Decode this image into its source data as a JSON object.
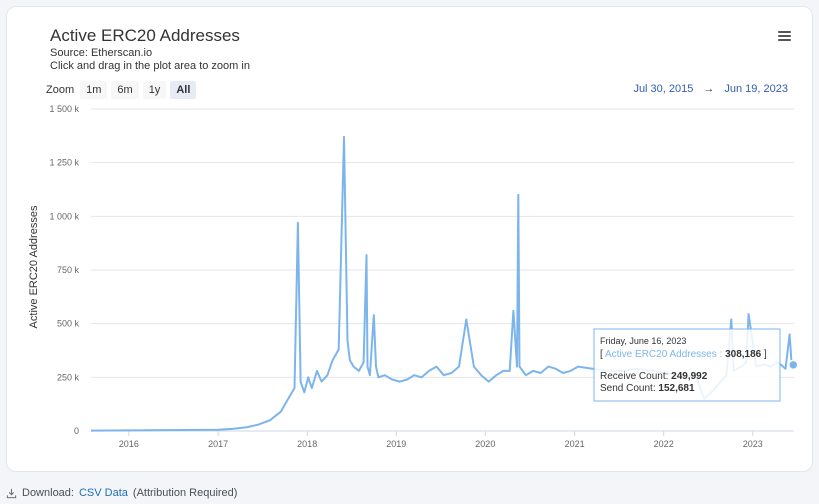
{
  "header": {
    "title": "Active ERC20 Addresses",
    "source": "Source: Etherscan.io",
    "hint": "Click and drag in the plot area to zoom in",
    "menu_icon": "hamburger-menu-icon"
  },
  "zoom": {
    "label": "Zoom",
    "buttons": [
      "1m",
      "6m",
      "1y",
      "All"
    ],
    "active": "All"
  },
  "range": {
    "from": "Jul 30, 2015",
    "arrow": "→",
    "to": "Jun 19, 2023"
  },
  "tooltip": {
    "date": "Friday, June 16, 2023",
    "series_open": "[ ",
    "series_name": "Active ERC20 Addresses",
    "series_sep": " : ",
    "series_value": "308,186",
    "series_close": " ]",
    "receive_label": "Receive Count:",
    "receive_value": "249,992",
    "send_label": "Send Count:",
    "send_value": "152,681"
  },
  "footer": {
    "prefix": "Download:",
    "link": "CSV Data",
    "suffix": "(Attribution Required)",
    "icon": "download-icon"
  },
  "chart_data": {
    "type": "line",
    "title": "Active ERC20 Addresses",
    "ylabel": "Active ERC20 Addresses",
    "xlabel": "",
    "xlim": [
      "2015-07-30",
      "2023-06-19"
    ],
    "ylim": [
      0,
      1500000
    ],
    "ytick_values": [
      0,
      250000,
      500000,
      750000,
      1000000,
      1250000,
      1500000
    ],
    "ytick_labels": [
      "0",
      "250 k",
      "500 k",
      "750 k",
      "1 000 k",
      "1 250 k",
      "1 500 k"
    ],
    "xtick_labels": [
      "2016",
      "2017",
      "2018",
      "2019",
      "2020",
      "2021",
      "2022",
      "2023"
    ],
    "xtick_dates": [
      "2016-01-01",
      "2017-01-01",
      "2018-01-01",
      "2019-01-01",
      "2020-01-01",
      "2021-01-01",
      "2022-01-01",
      "2023-01-01"
    ],
    "grid": true,
    "line_color": "#7cb5ec",
    "series": [
      {
        "name": "Active ERC20 Addresses",
        "x": [
          "2015-07-30",
          "2016-01-01",
          "2016-06-01",
          "2017-01-01",
          "2017-03-01",
          "2017-05-01",
          "2017-06-15",
          "2017-08-01",
          "2017-09-15",
          "2017-10-15",
          "2017-11-10",
          "2017-11-24",
          "2017-12-05",
          "2017-12-20",
          "2018-01-05",
          "2018-01-20",
          "2018-02-10",
          "2018-03-01",
          "2018-03-25",
          "2018-04-15",
          "2018-05-10",
          "2018-06-01",
          "2018-06-15",
          "2018-06-25",
          "2018-07-10",
          "2018-08-01",
          "2018-08-20",
          "2018-09-01",
          "2018-09-05",
          "2018-09-15",
          "2018-10-01",
          "2018-10-10",
          "2018-10-20",
          "2018-11-15",
          "2018-12-15",
          "2019-01-15",
          "2019-02-15",
          "2019-03-15",
          "2019-04-15",
          "2019-05-15",
          "2019-06-15",
          "2019-07-15",
          "2019-08-15",
          "2019-09-15",
          "2019-10-15",
          "2019-11-15",
          "2019-12-15",
          "2020-01-15",
          "2020-02-15",
          "2020-03-15",
          "2020-04-10",
          "2020-04-25",
          "2020-05-10",
          "2020-05-15",
          "2020-05-20",
          "2020-06-15",
          "2020-07-15",
          "2020-08-15",
          "2020-09-15",
          "2020-10-15",
          "2020-11-15",
          "2020-12-15",
          "2021-01-15",
          "2021-03-15",
          "2021-05-15",
          "2021-07-15",
          "2021-09-15",
          "2021-11-15",
          "2022-01-15",
          "2022-03-15",
          "2022-05-15",
          "2022-06-15",
          "2022-07-15",
          "2022-08-15",
          "2022-09-15",
          "2022-10-05",
          "2022-10-15",
          "2022-11-15",
          "2022-12-05",
          "2022-12-15",
          "2023-01-15",
          "2023-02-15",
          "2023-03-15",
          "2023-04-15",
          "2023-05-15",
          "2023-06-01",
          "2023-06-10",
          "2023-06-16"
        ],
        "values": [
          2000,
          3000,
          4000,
          6000,
          10000,
          18000,
          30000,
          50000,
          90000,
          150000,
          200000,
          970000,
          230000,
          180000,
          250000,
          200000,
          280000,
          230000,
          260000,
          330000,
          380000,
          1370000,
          420000,
          330000,
          300000,
          280000,
          320000,
          820000,
          300000,
          260000,
          540000,
          300000,
          250000,
          260000,
          240000,
          230000,
          240000,
          260000,
          250000,
          280000,
          300000,
          260000,
          270000,
          300000,
          520000,
          300000,
          260000,
          230000,
          260000,
          280000,
          280000,
          560000,
          300000,
          1100000,
          300000,
          260000,
          280000,
          270000,
          300000,
          290000,
          270000,
          280000,
          300000,
          290000,
          280000,
          280000,
          290000,
          280000,
          270000,
          260000,
          250000,
          150000,
          180000,
          220000,
          260000,
          520000,
          280000,
          300000,
          320000,
          545000,
          300000,
          310000,
          300000,
          320000,
          290000,
          450000,
          300000,
          308186
        ]
      }
    ]
  }
}
